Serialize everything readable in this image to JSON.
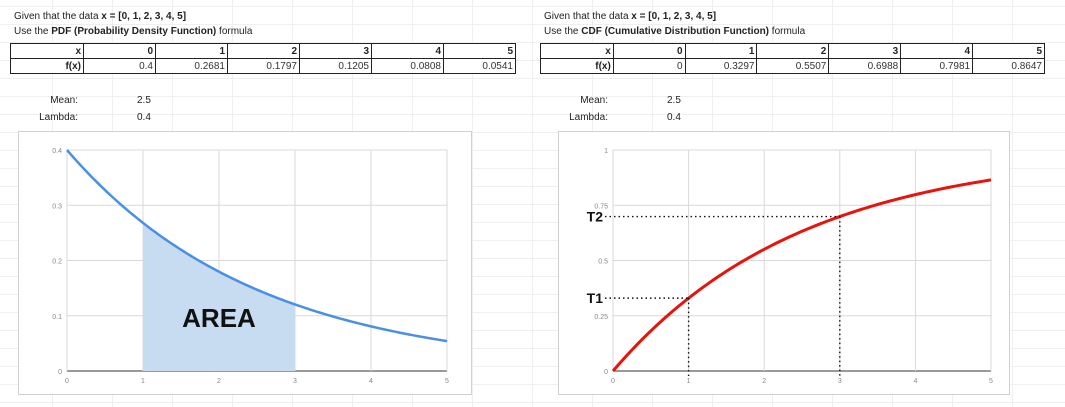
{
  "pdf_panel": {
    "intro_prefix": "Given that the data ",
    "intro_data": "x = [0, 1, 2, 3, 4, 5]",
    "use_prefix": "Use the ",
    "use_name": "PDF (Probability Density Function)",
    "use_suffix": " formula",
    "table": {
      "x_label": "x",
      "f_label": "f(x)",
      "x": [
        "0",
        "1",
        "2",
        "3",
        "4",
        "5"
      ],
      "f": [
        "0.4",
        "0.2681",
        "0.1797",
        "0.1205",
        "0.0808",
        "0.0541"
      ]
    },
    "mean_label": "Mean:",
    "mean_value": "2.5",
    "lambda_label": "Lambda:",
    "lambda_value": "0.4"
  },
  "cdf_panel": {
    "intro_prefix": "Given that the data ",
    "intro_data": "x = [0, 1, 2, 3, 4, 5]",
    "use_prefix": "Use the ",
    "use_name": "CDF (Cumulative Distribution Function)",
    "use_suffix": " formula",
    "table": {
      "x_label": "x",
      "f_label": "f(x)",
      "x": [
        "0",
        "1",
        "2",
        "3",
        "4",
        "5"
      ],
      "f": [
        "0",
        "0.3297",
        "0.5507",
        "0.6988",
        "0.7981",
        "0.8647"
      ]
    },
    "mean_label": "Mean:",
    "mean_value": "2.5",
    "lambda_label": "Lambda:",
    "lambda_value": "0.4"
  },
  "chart_data": [
    {
      "type": "area",
      "function": "pdf",
      "lambda": 0.4,
      "x_range": [
        0,
        5
      ],
      "ylim": [
        0,
        0.4
      ],
      "x_ticks": [
        "0",
        "1",
        "2",
        "3",
        "4",
        "5"
      ],
      "y_ticks": [
        "0",
        "0.1",
        "0.2",
        "0.3",
        "0.4"
      ],
      "shaded_interval": [
        1,
        3
      ],
      "annotation": "AREA",
      "line_color": "#4a8fe7",
      "fill_color": "#c7dcf1",
      "grid": true
    },
    {
      "type": "line",
      "function": "cdf",
      "lambda": 0.4,
      "x_range": [
        0,
        5
      ],
      "ylim": [
        0,
        1
      ],
      "x_ticks": [
        "0",
        "1",
        "2",
        "3",
        "4",
        "5"
      ],
      "y_ticks": [
        "0",
        "0.25",
        "0.5",
        "0.75",
        "1"
      ],
      "markers": [
        {
          "label": "T1",
          "x": 1,
          "y": 0.3297
        },
        {
          "label": "T2",
          "x": 3,
          "y": 0.6988
        }
      ],
      "line_color": "#e8140c",
      "grid": true
    }
  ]
}
